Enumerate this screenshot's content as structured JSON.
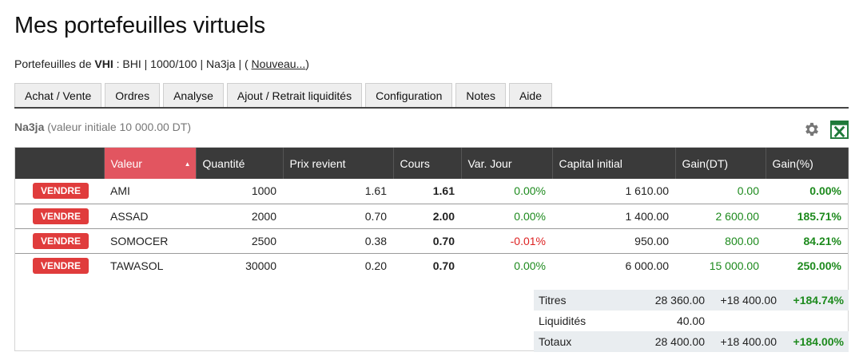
{
  "page": {
    "title": "Mes portefeuilles virtuels"
  },
  "subline": {
    "prefix": "Portefeuilles de",
    "user": "VHI",
    "details": " : BHI | 1000/100 | Na3ja |",
    "open_paren": " ( ",
    "new_link": "Nouveau...",
    "close_paren": ")"
  },
  "tabs": [
    {
      "label": "Achat / Vente"
    },
    {
      "label": "Ordres"
    },
    {
      "label": "Analyse"
    },
    {
      "label": "Ajout / Retrait liquidités"
    },
    {
      "label": "Configuration"
    },
    {
      "label": "Notes"
    },
    {
      "label": "Aide"
    }
  ],
  "portfolio": {
    "name": "Na3ja",
    "initial": "(valeur initiale 10 000.00 DT)"
  },
  "icons": {
    "settings": "gear-icon",
    "export": "excel-icon",
    "excel_color": "#1f7a3a"
  },
  "colors": {
    "sort_header": "#e25560",
    "sell": "#e03c3c",
    "gain": "#1d8a1d",
    "loss": "#d22222"
  },
  "table": {
    "headers": [
      "",
      "Valeur",
      "Quantité",
      "Prix revient",
      "Cours",
      "Var. Jour",
      "Capital initial",
      "Gain(DT)",
      "Gain(%)"
    ],
    "sell_label": "VENDRE",
    "rows": [
      {
        "valeur": "AMI",
        "quantite": "1000",
        "prix": "1.61",
        "cours": "1.61",
        "var": "0.00%",
        "capital": "1 610.00",
        "gain_dt": "0.00",
        "gain_pct": "0.00%"
      },
      {
        "valeur": "ASSAD",
        "quantite": "2000",
        "prix": "0.70",
        "cours": "2.00",
        "var": "0.00%",
        "capital": "1 400.00",
        "gain_dt": "2 600.00",
        "gain_pct": "185.71%"
      },
      {
        "valeur": "SOMOCER",
        "quantite": "2500",
        "prix": "0.38",
        "cours": "0.70",
        "var": "-0.01%",
        "capital": "950.00",
        "gain_dt": "800.00",
        "gain_pct": "84.21%"
      },
      {
        "valeur": "TAWASOL",
        "quantite": "30000",
        "prix": "0.20",
        "cours": "0.70",
        "var": "0.00%",
        "capital": "6 000.00",
        "gain_dt": "15 000.00",
        "gain_pct": "250.00%"
      }
    ]
  },
  "summary": {
    "titres": {
      "label": "Titres",
      "value": "28 360.00",
      "gain": "+18 400.00",
      "pct": "+184.74%"
    },
    "liquidites": {
      "label": "Liquidités",
      "value": "40.00"
    },
    "totaux": {
      "label": "Totaux",
      "value": "28 400.00",
      "gain": "+18 400.00",
      "pct": "+184.00%"
    }
  }
}
